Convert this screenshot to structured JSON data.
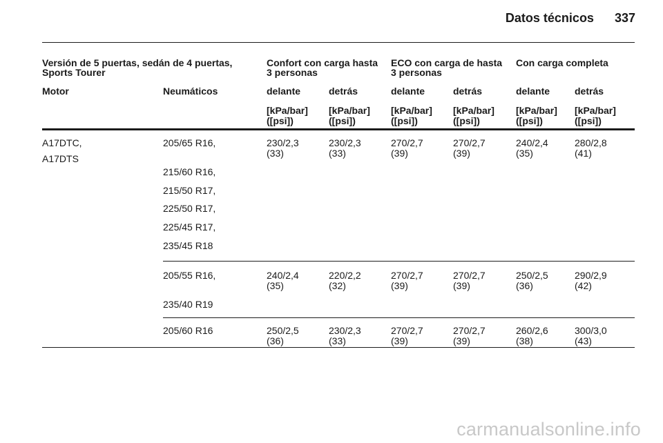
{
  "header": {
    "title": "Datos técnicos",
    "page_number": "337"
  },
  "table": {
    "group_headers": {
      "version_line1": "Versión de 5 puertas, sedán de 4 puertas,",
      "version_line2": "Sports Tourer",
      "confort_line1": "Confort con carga hasta",
      "confort_line2": "3 personas",
      "eco_line1": "ECO con carga de hasta",
      "eco_line2": "3 personas",
      "full_load": "Con carga completa"
    },
    "column_headers": [
      "Motor",
      "Neumáticos",
      "delante",
      "detrás",
      "delante",
      "detrás",
      "delante",
      "detrás"
    ],
    "unit_line1": "[kPa/bar]",
    "unit_line2": "([psi])",
    "motor": [
      "A17DTC,",
      "A17DTS"
    ],
    "rows": [
      {
        "tires": [
          "205/65 R16,",
          "215/60 R16,",
          "215/50 R17,",
          "225/50 R17,",
          "225/45 R17,",
          "235/45 R18"
        ],
        "values": [
          [
            "230/2,3",
            "(33)"
          ],
          [
            "230/2,3",
            "(33)"
          ],
          [
            "270/2,7",
            "(39)"
          ],
          [
            "270/2,7",
            "(39)"
          ],
          [
            "240/2,4",
            "(35)"
          ],
          [
            "280/2,8",
            "(41)"
          ]
        ]
      },
      {
        "tires": [
          "205/55 R16,",
          "235/40 R19"
        ],
        "values": [
          [
            "240/2,4",
            "(35)"
          ],
          [
            "220/2,2",
            "(32)"
          ],
          [
            "270/2,7",
            "(39)"
          ],
          [
            "270/2,7",
            "(39)"
          ],
          [
            "250/2,5",
            "(36)"
          ],
          [
            "290/2,9",
            "(42)"
          ]
        ]
      },
      {
        "tires": [
          "205/60 R16"
        ],
        "values": [
          [
            "250/2,5",
            "(36)"
          ],
          [
            "230/2,3",
            "(33)"
          ],
          [
            "270/2,7",
            "(39)"
          ],
          [
            "270/2,7",
            "(39)"
          ],
          [
            "260/2,6",
            "(38)"
          ],
          [
            "300/3,0",
            "(43)"
          ]
        ]
      }
    ]
  },
  "watermark": "carmanualsonline.info"
}
